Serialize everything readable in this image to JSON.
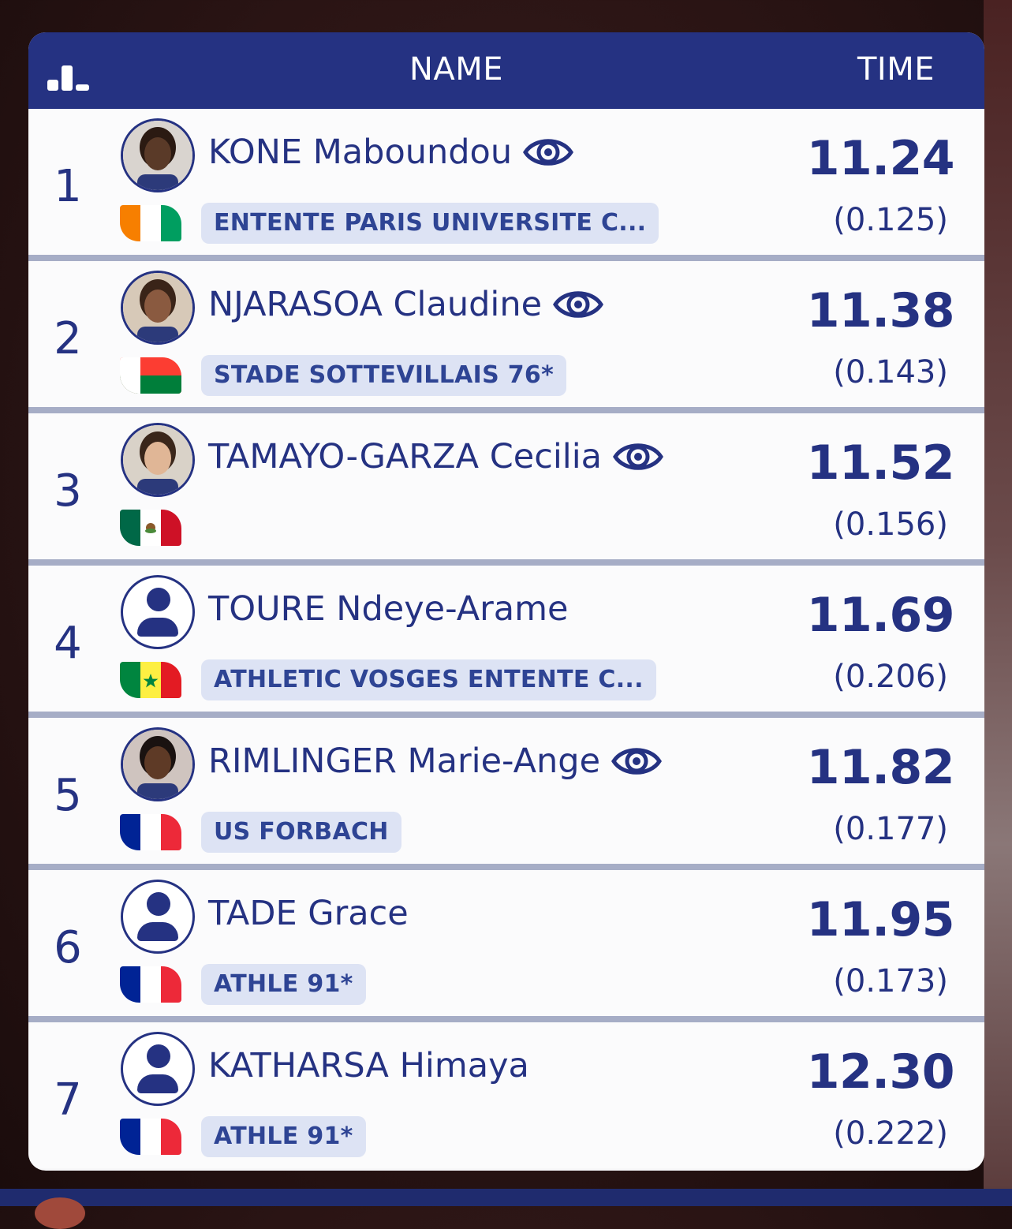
{
  "header": {
    "name_label": "NAME",
    "time_label": "TIME",
    "icon": "ranking-bars-icon"
  },
  "colors": {
    "primary": "#253282",
    "row_bg": "#fbfbfc",
    "divider": "#a6adc6",
    "club_bg": "#dde3f4",
    "club_text": "#2e4494"
  },
  "rows": [
    {
      "rank": "1",
      "name": "KONE Maboundou",
      "has_eye": true,
      "has_photo": true,
      "flag": "civ-flag-icon",
      "club": "ENTENTE PARIS UNIVERSITE C...",
      "time": "11.24",
      "reaction": "(0.125)"
    },
    {
      "rank": "2",
      "name": "NJARASOA Claudine",
      "has_eye": true,
      "has_photo": true,
      "flag": "mdg-flag-icon",
      "club": "STADE SOTTEVILLAIS 76*",
      "time": "11.38",
      "reaction": "(0.143)"
    },
    {
      "rank": "3",
      "name": "TAMAYO-GARZA Cecilia",
      "has_eye": true,
      "has_photo": true,
      "flag": "mex-flag-icon",
      "club": "",
      "time": "11.52",
      "reaction": "(0.156)"
    },
    {
      "rank": "4",
      "name": "TOURE Ndeye-Arame",
      "has_eye": false,
      "has_photo": false,
      "flag": "sen-flag-icon",
      "club": "ATHLETIC VOSGES ENTENTE C...",
      "time": "11.69",
      "reaction": "(0.206)"
    },
    {
      "rank": "5",
      "name": "RIMLINGER Marie-Ange",
      "has_eye": true,
      "has_photo": true,
      "flag": "fra-flag-icon",
      "club": "US FORBACH",
      "time": "11.82",
      "reaction": "(0.177)"
    },
    {
      "rank": "6",
      "name": "TADE Grace",
      "has_eye": false,
      "has_photo": false,
      "flag": "fra-flag-icon",
      "club": "ATHLE 91*",
      "time": "11.95",
      "reaction": "(0.173)"
    },
    {
      "rank": "7",
      "name": "KATHARSA Himaya",
      "has_eye": false,
      "has_photo": false,
      "flag": "fra-flag-icon",
      "club": "ATHLE 91*",
      "time": "12.30",
      "reaction": "(0.222)"
    }
  ]
}
